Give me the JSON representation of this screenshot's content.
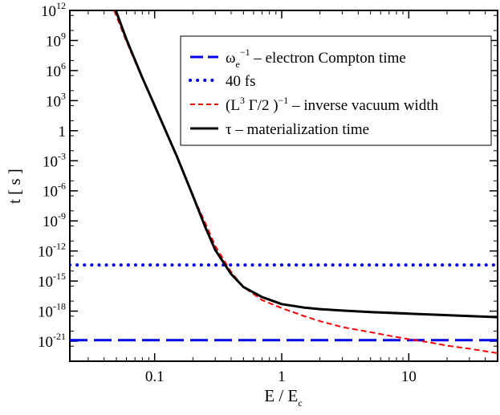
{
  "chart_data": {
    "type": "line",
    "title": "",
    "xscale": "log",
    "yscale": "log",
    "xlim": [
      0.0215,
      50
    ],
    "ylim_exp": [
      -23,
      12
    ],
    "xlabel": {
      "main": "E / E",
      "sub": "c"
    },
    "ylabel": "t [ s ]",
    "x_ticks": [
      {
        "value": 0.1,
        "label": "0.1"
      },
      {
        "value": 1,
        "label": "1"
      },
      {
        "value": 10,
        "label": "10"
      }
    ],
    "y_ticks": [
      {
        "exp": 12,
        "base": "10",
        "sup": "12"
      },
      {
        "exp": 9,
        "base": "10",
        "sup": "9"
      },
      {
        "exp": 6,
        "base": "10",
        "sup": "6"
      },
      {
        "exp": 3,
        "base": "10",
        "sup": "3"
      },
      {
        "exp": 0,
        "base": "1",
        "sup": ""
      },
      {
        "exp": -3,
        "base": "10",
        "sup": "-3"
      },
      {
        "exp": -6,
        "base": "10",
        "sup": "-6"
      },
      {
        "exp": -9,
        "base": "10",
        "sup": "-9"
      },
      {
        "exp": -12,
        "base": "10",
        "sup": "-12"
      },
      {
        "exp": -15,
        "base": "10",
        "sup": "-15"
      },
      {
        "exp": -18,
        "base": "10",
        "sup": "-18"
      },
      {
        "exp": -21,
        "base": "10",
        "sup": "-21"
      }
    ],
    "series": [
      {
        "name": "electron-compton-time",
        "legend": {
          "main": "ω",
          "sub": "e",
          "sup": "−1",
          "rest": " – electron Compton time"
        },
        "style": "dashed",
        "color": "#0000ee",
        "points": [
          [
            0.0215,
            -20.9
          ],
          [
            50,
            -20.9
          ]
        ]
      },
      {
        "name": "40-fs",
        "legend": {
          "main": "40 fs"
        },
        "style": "dotted",
        "color": "#0000ee",
        "points": [
          [
            0.0215,
            -13.4
          ],
          [
            50,
            -13.4
          ]
        ]
      },
      {
        "name": "inverse-vacuum-width",
        "legend": {
          "pre": "(L",
          "sup1": "3",
          "mid": " Γ/2 )",
          "sup2": "−1",
          "rest": " – inverse vacuum width"
        },
        "style": "dashed-thin",
        "color": "#ff0000",
        "points": [
          [
            0.048,
            12
          ],
          [
            0.06,
            8.9
          ],
          [
            0.08,
            5.2
          ],
          [
            0.1,
            2.6
          ],
          [
            0.15,
            -2.6
          ],
          [
            0.2,
            -6.5
          ],
          [
            0.25,
            -9.2
          ],
          [
            0.3,
            -11.5
          ],
          [
            0.4,
            -14.1
          ],
          [
            0.5,
            -15.6
          ],
          [
            0.7,
            -16.9
          ],
          [
            1,
            -17.7
          ],
          [
            1.5,
            -18.5
          ],
          [
            2,
            -19.0
          ],
          [
            3,
            -19.6
          ],
          [
            5,
            -20.1
          ],
          [
            7,
            -20.45
          ],
          [
            10,
            -20.8
          ],
          [
            15,
            -21.15
          ],
          [
            20,
            -21.45
          ],
          [
            30,
            -21.75
          ],
          [
            50,
            -22.2
          ]
        ]
      },
      {
        "name": "materialization-time",
        "legend": {
          "main": "τ",
          "rest": " – materialization time"
        },
        "style": "solid",
        "color": "#000000",
        "points": [
          [
            0.0495,
            12
          ],
          [
            0.06,
            9.1
          ],
          [
            0.08,
            5.3
          ],
          [
            0.1,
            2.5
          ],
          [
            0.15,
            -2.6
          ],
          [
            0.2,
            -6.5
          ],
          [
            0.25,
            -9.6
          ],
          [
            0.3,
            -11.9
          ],
          [
            0.4,
            -14.3
          ],
          [
            0.5,
            -15.6
          ],
          [
            0.7,
            -16.6
          ],
          [
            1,
            -17.3
          ],
          [
            1.5,
            -17.65
          ],
          [
            2,
            -17.8
          ],
          [
            3,
            -17.95
          ],
          [
            5,
            -18.1
          ],
          [
            10,
            -18.25
          ],
          [
            20,
            -18.4
          ],
          [
            50,
            -18.6
          ]
        ]
      }
    ],
    "legend_position": "top-right"
  }
}
